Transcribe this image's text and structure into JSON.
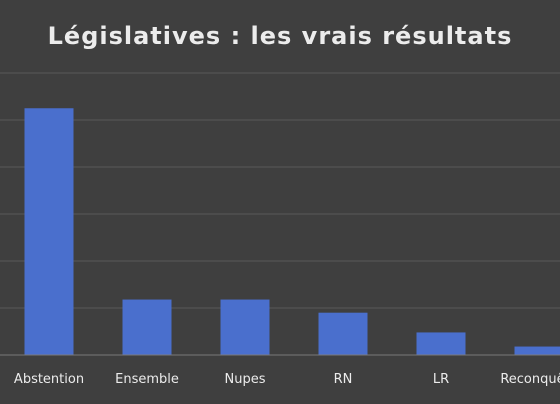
{
  "colors": {
    "background": "#3f3f3f",
    "bar": "#4a6fcd",
    "gridline": "#585858",
    "baseline": "#7a7a7a",
    "text": "#ececec"
  },
  "chart_data": {
    "type": "bar",
    "title": "Législatives : les vrais résultats",
    "categories": [
      "Abstention",
      "Ensemble",
      "Nupes",
      "RN",
      "LR",
      "Reconquête"
    ],
    "values": [
      52.5,
      11.8,
      11.8,
      9,
      4.8,
      1.8
    ],
    "ylim": [
      0,
      60
    ],
    "ytick_step": 10,
    "grid": true,
    "legend": "none"
  }
}
